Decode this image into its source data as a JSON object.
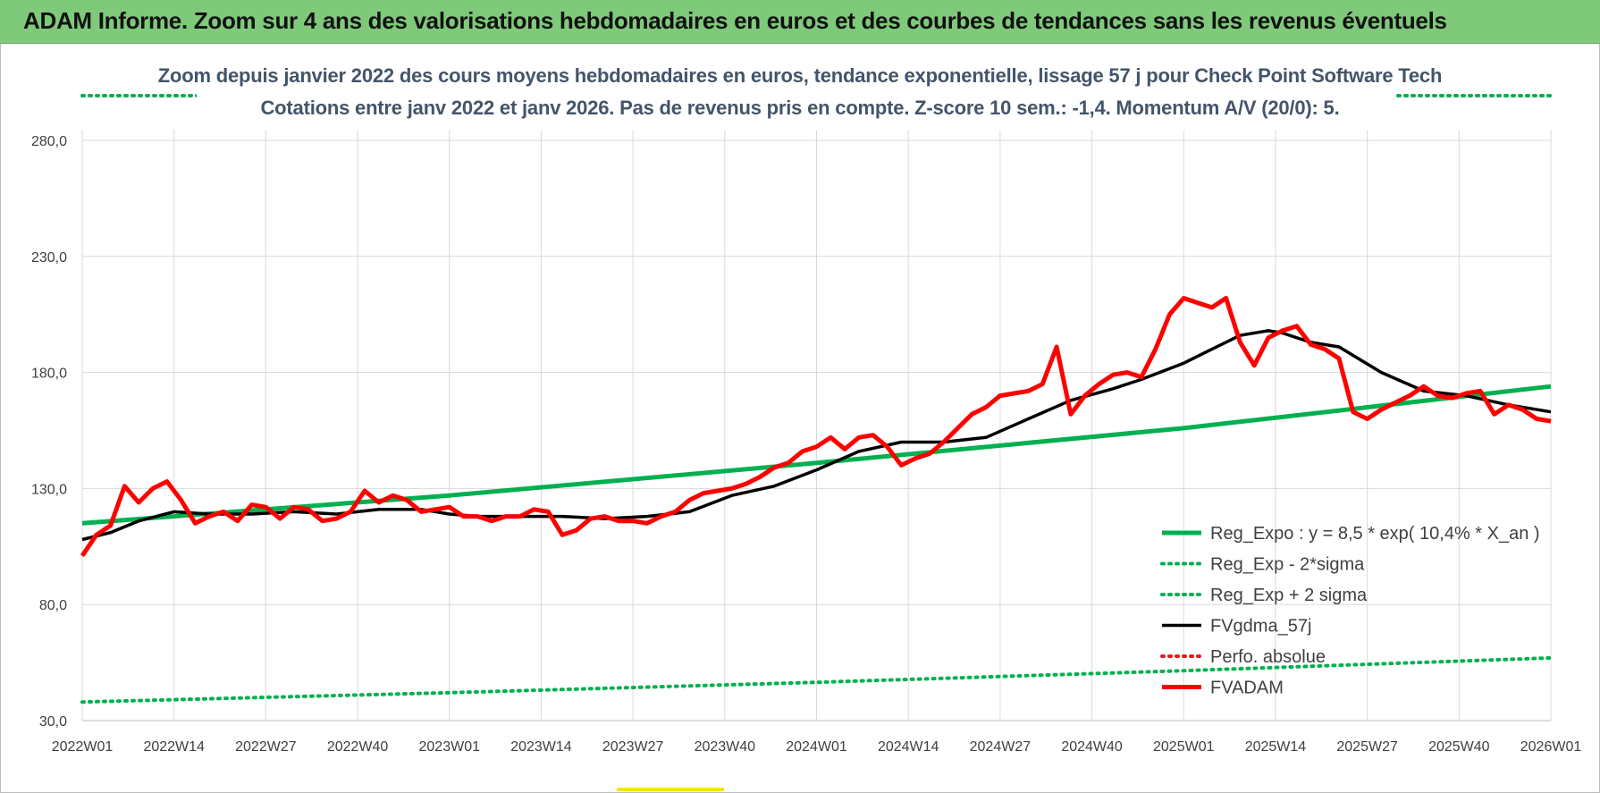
{
  "banner": {
    "title": "ADAM Informe. Zoom sur 4 ans des valorisations hebdomadaires en euros et des courbes de tendances sans les revenus éventuels"
  },
  "chart_data": {
    "type": "line",
    "title": "Zoom depuis janvier 2022 des cours moyens hebdomadaires en euros, tendance exponentielle, lissage 57 j pour Check Point Software Tech",
    "subtitle": "Cotations entre janv 2022 et janv 2026. Pas de revenus pris en compte. Z-score 10 sem.: -1,4. Momentum A/V (20/0): 5.",
    "xlabel": "",
    "ylabel": "",
    "ylim": [
      30,
      300
    ],
    "y_ticks": [
      "30,0",
      "80,0",
      "130,0",
      "180,0",
      "230,0",
      "280,0"
    ],
    "x_ticks": [
      "2022W01",
      "2022W14",
      "2022W27",
      "2022W40",
      "2023W01",
      "2023W14",
      "2023W27",
      "2023W40",
      "2024W01",
      "2024W14",
      "2024W27",
      "2024W40",
      "2025W01",
      "2025W14",
      "2025W27",
      "2025W40",
      "2026W01"
    ],
    "grid": true,
    "legend_position": "bottom-right",
    "series": [
      {
        "name": "Reg_Expo : y = 8,5 * exp( 10,4% *  X_an )",
        "color": "#00b050",
        "style": "solid-thick",
        "x": [
          0,
          52,
          104,
          156,
          208
        ],
        "values": [
          115,
          127,
          141,
          156,
          174
        ]
      },
      {
        "name": "Reg_Exp - 2*sigma",
        "color": "#00b050",
        "style": "dotted",
        "x": [
          0,
          52,
          104,
          156,
          208
        ],
        "values": [
          38,
          42,
          46.5,
          51.5,
          57
        ]
      },
      {
        "name": "Reg_Exp + 2 sigma",
        "color": "#00b050",
        "style": "dotted",
        "x": [
          0,
          52,
          104,
          156,
          208
        ],
        "values": [
          300,
          300,
          300,
          300,
          300
        ]
      },
      {
        "name": "FVgdma_57j",
        "color": "#000000",
        "style": "solid",
        "x": [
          0,
          4,
          8,
          13,
          18,
          24,
          30,
          36,
          42,
          48,
          52,
          56,
          62,
          68,
          74,
          80,
          86,
          92,
          98,
          104,
          110,
          116,
          122,
          128,
          134,
          140,
          146,
          150,
          156,
          160,
          164,
          168,
          170,
          174,
          178,
          184,
          190,
          196,
          202,
          208
        ],
        "values": [
          108,
          111,
          116,
          120,
          119,
          119,
          120,
          119,
          121,
          121,
          119,
          118,
          118,
          118,
          117,
          118,
          120,
          127,
          131,
          138,
          146,
          150,
          150,
          152,
          160,
          168,
          173,
          177,
          184,
          190,
          196,
          198,
          197,
          193,
          191,
          180,
          172,
          170,
          166,
          163
        ]
      },
      {
        "name": "Perfo. absolue",
        "color": "#e81a1a",
        "style": "dotted",
        "x": [],
        "values": []
      },
      {
        "name": "FVADAM",
        "color": "#ff0000",
        "style": "solid-thick",
        "x": [
          0,
          2,
          4,
          6,
          8,
          10,
          12,
          14,
          16,
          18,
          20,
          22,
          24,
          26,
          28,
          30,
          32,
          34,
          36,
          38,
          40,
          42,
          44,
          46,
          48,
          50,
          52,
          54,
          56,
          58,
          60,
          62,
          64,
          66,
          68,
          70,
          72,
          74,
          76,
          78,
          80,
          82,
          84,
          86,
          88,
          90,
          92,
          94,
          96,
          98,
          100,
          102,
          104,
          106,
          108,
          110,
          112,
          114,
          116,
          118,
          120,
          122,
          124,
          126,
          128,
          130,
          132,
          134,
          136,
          138,
          140,
          142,
          144,
          146,
          148,
          150,
          152,
          154,
          156,
          158,
          160,
          162,
          164,
          166,
          168,
          170,
          172,
          174,
          176,
          178,
          180,
          182,
          184,
          186,
          188,
          190,
          192,
          194,
          196,
          198,
          200,
          202,
          204,
          206,
          208
        ],
        "values": [
          101,
          110,
          114,
          131,
          124,
          130,
          133,
          125,
          115,
          118,
          120,
          116,
          123,
          122,
          117,
          122,
          121,
          116,
          117,
          120,
          129,
          124,
          127,
          125,
          120,
          121,
          122,
          118,
          118,
          116,
          118,
          118,
          121,
          120,
          110,
          112,
          117,
          118,
          116,
          116,
          115,
          118,
          120,
          125,
          128,
          129,
          130,
          132,
          135,
          139,
          141,
          146,
          148,
          152,
          147,
          152,
          153,
          148,
          140,
          143,
          145,
          150,
          156,
          162,
          165,
          170,
          171,
          172,
          175,
          191,
          162,
          170,
          175,
          179,
          180,
          178,
          190,
          205,
          212,
          210,
          208,
          212,
          193,
          183,
          195,
          198,
          200,
          192,
          190,
          186,
          163,
          160,
          164,
          167,
          170,
          174,
          170,
          169,
          171,
          172,
          162,
          166,
          164,
          160,
          159
        ]
      }
    ]
  }
}
